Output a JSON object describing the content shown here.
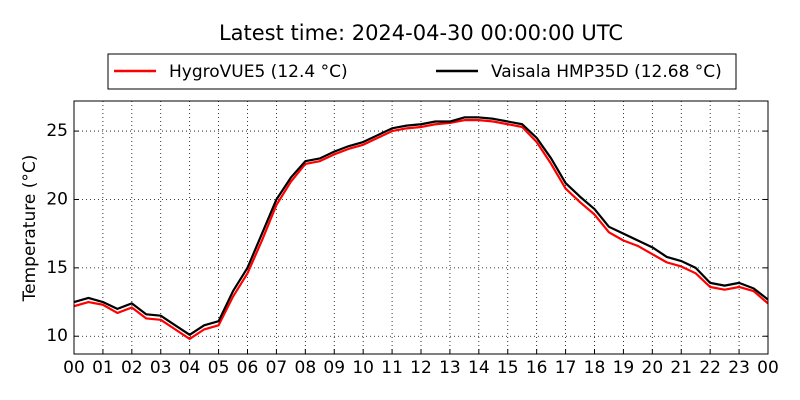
{
  "chart_data": {
    "type": "line",
    "title": "Latest time: 2024-04-30 00:00:00 UTC",
    "y_label": "Temperature (°C)",
    "x": [
      0,
      0.5,
      1,
      1.5,
      2,
      2.5,
      3,
      3.5,
      4,
      4.5,
      5,
      5.5,
      6,
      6.5,
      7,
      7.5,
      8,
      8.5,
      9,
      9.5,
      10,
      10.5,
      11,
      11.5,
      12,
      12.5,
      13,
      13.5,
      14,
      14.5,
      15,
      15.5,
      16,
      16.5,
      17,
      17.5,
      18,
      18.5,
      19,
      19.5,
      20,
      20.5,
      21,
      21.5,
      22,
      22.5,
      23,
      23.5,
      24
    ],
    "series": [
      {
        "name": "HygroVUE5 (12.4 °C)",
        "color": "#ff0000",
        "values": [
          12.2,
          12.5,
          12.3,
          11.7,
          12.1,
          11.3,
          11.2,
          10.5,
          9.8,
          10.5,
          10.8,
          12.9,
          14.6,
          17.0,
          19.6,
          21.3,
          22.6,
          22.8,
          23.3,
          23.7,
          24.0,
          24.5,
          25.0,
          25.2,
          25.3,
          25.5,
          25.6,
          25.8,
          25.8,
          25.7,
          25.5,
          25.3,
          24.2,
          22.6,
          20.8,
          19.8,
          18.9,
          17.6,
          17.0,
          16.6,
          16.0,
          15.4,
          15.1,
          14.6,
          13.6,
          13.4,
          13.6,
          13.3,
          12.4
        ]
      },
      {
        "name": "Vaisala HMP35D (12.68 °C)",
        "color": "#000000",
        "values": [
          12.5,
          12.8,
          12.5,
          12.0,
          12.4,
          11.6,
          11.5,
          10.8,
          10.1,
          10.8,
          11.1,
          13.3,
          15.0,
          17.5,
          20.0,
          21.6,
          22.8,
          23.0,
          23.5,
          23.9,
          24.2,
          24.7,
          25.2,
          25.4,
          25.5,
          25.7,
          25.7,
          26.0,
          26.0,
          25.9,
          25.7,
          25.5,
          24.5,
          23.0,
          21.2,
          20.2,
          19.3,
          18.0,
          17.5,
          17.0,
          16.5,
          15.8,
          15.5,
          15.0,
          13.9,
          13.7,
          13.9,
          13.5,
          12.68
        ]
      }
    ],
    "xlim": [
      0,
      24
    ],
    "xticks": [
      {
        "value": 0,
        "label": "00"
      },
      {
        "value": 1,
        "label": "01"
      },
      {
        "value": 2,
        "label": "02"
      },
      {
        "value": 3,
        "label": "03"
      },
      {
        "value": 4,
        "label": "04"
      },
      {
        "value": 5,
        "label": "05"
      },
      {
        "value": 6,
        "label": "06"
      },
      {
        "value": 7,
        "label": "07"
      },
      {
        "value": 8,
        "label": "08"
      },
      {
        "value": 9,
        "label": "09"
      },
      {
        "value": 10,
        "label": "10"
      },
      {
        "value": 11,
        "label": "11"
      },
      {
        "value": 12,
        "label": "12"
      },
      {
        "value": 13,
        "label": "13"
      },
      {
        "value": 14,
        "label": "14"
      },
      {
        "value": 15,
        "label": "15"
      },
      {
        "value": 16,
        "label": "16"
      },
      {
        "value": 17,
        "label": "17"
      },
      {
        "value": 18,
        "label": "18"
      },
      {
        "value": 19,
        "label": "19"
      },
      {
        "value": 20,
        "label": "20"
      },
      {
        "value": 21,
        "label": "21"
      },
      {
        "value": 22,
        "label": "22"
      },
      {
        "value": 23,
        "label": "23"
      },
      {
        "value": 24,
        "label": "00"
      }
    ],
    "ylim": [
      8.7,
      27.2
    ],
    "yticks": [
      10,
      15,
      20,
      25
    ],
    "grid": true
  }
}
